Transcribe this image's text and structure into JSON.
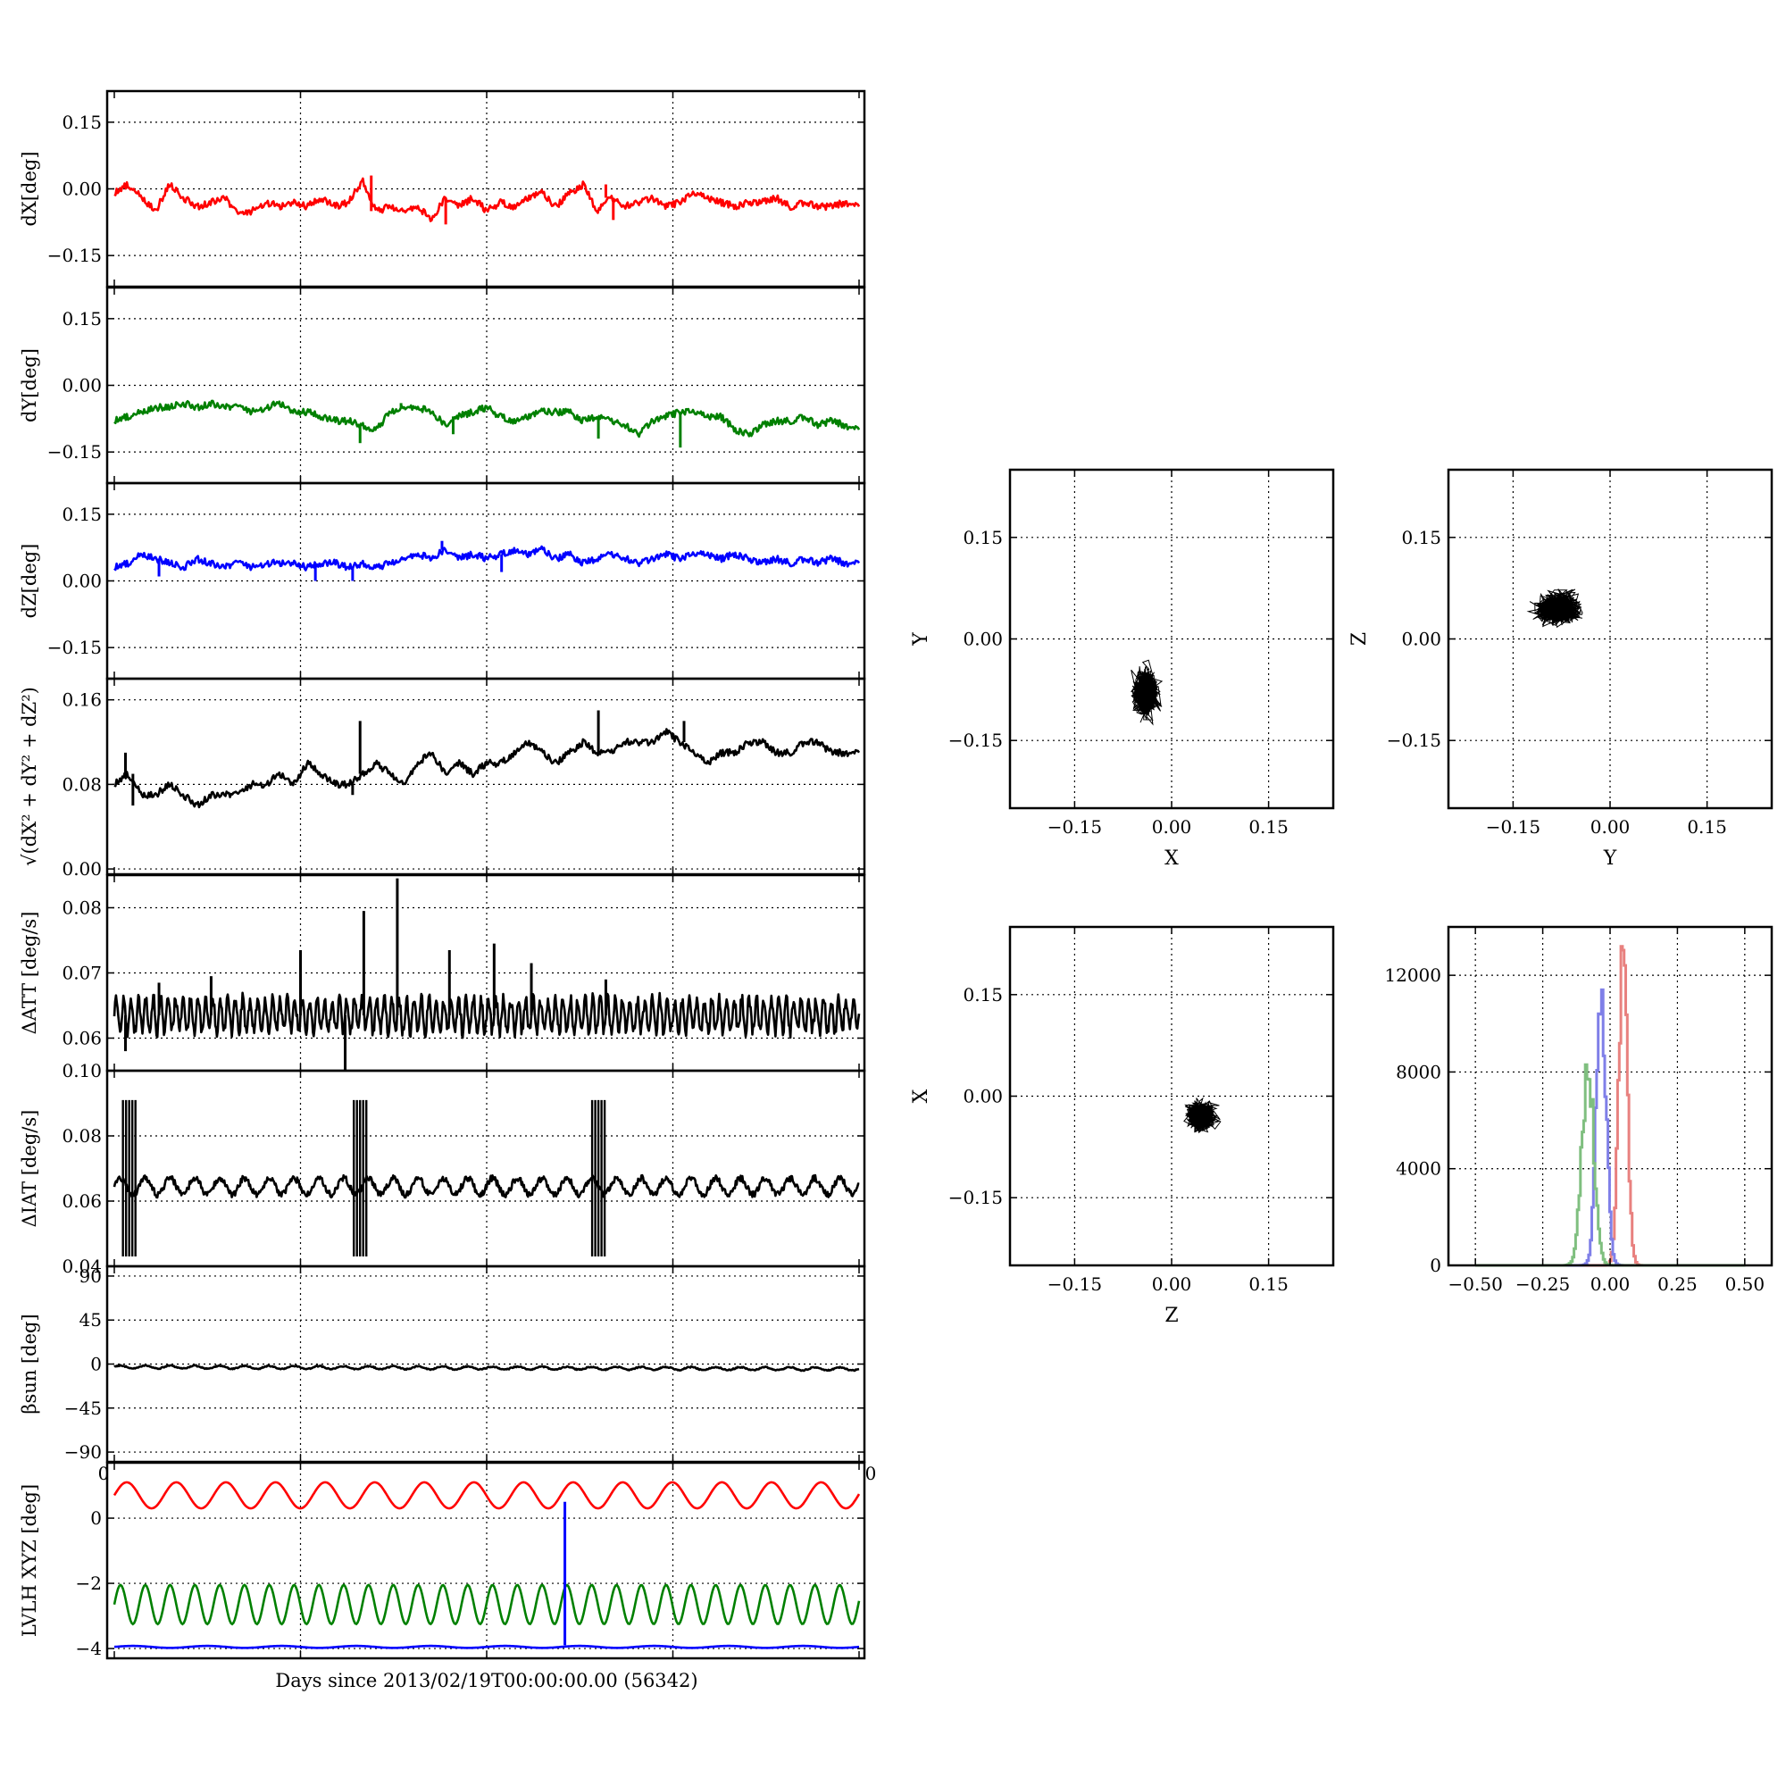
{
  "figure": {
    "xlabel": "Days since 2013/02/19T00:00:00.00 (56342)",
    "stray_tick_left": "0",
    "stray_tick_right": "0"
  },
  "chart_data": [
    {
      "id": "dX",
      "type": "line",
      "ylabel": "dX[deg]",
      "ylim": [
        -0.22,
        0.22
      ],
      "yticks": [
        -0.15,
        0.0,
        0.15
      ],
      "ytick_labels": [
        "−0.15",
        "0.00",
        "0.15"
      ],
      "xlim": [
        0,
        1
      ],
      "grid": true,
      "series": [
        {
          "color": "#ff0000",
          "values": [
            -0.01,
            0.01,
            -0.02,
            -0.05,
            0.01,
            -0.02,
            -0.04,
            -0.03,
            -0.02,
            -0.06,
            -0.05,
            -0.03,
            -0.04,
            -0.03,
            -0.04,
            -0.02,
            -0.04,
            -0.03,
            0.02,
            -0.05,
            -0.04,
            -0.05,
            -0.04,
            -0.07,
            -0.02,
            -0.04,
            -0.02,
            -0.05,
            -0.03,
            -0.04,
            -0.02,
            -0.01,
            -0.04,
            -0.01,
            0.01,
            -0.05,
            -0.02,
            -0.04,
            -0.03,
            -0.02,
            -0.04,
            -0.03,
            -0.01,
            -0.02,
            -0.03,
            -0.04,
            -0.03,
            -0.03,
            -0.02,
            -0.04,
            -0.03,
            -0.04,
            -0.04,
            -0.03,
            -0.04
          ]
        }
      ],
      "spikes": [
        {
          "x": 0.345,
          "y": 0.03
        },
        {
          "x": 0.445,
          "y": -0.08
        },
        {
          "x": 0.66,
          "y": 0.01
        },
        {
          "x": 0.67,
          "y": -0.07
        }
      ]
    },
    {
      "id": "dY",
      "type": "line",
      "ylabel": "dY[deg]",
      "ylim": [
        -0.22,
        0.22
      ],
      "yticks": [
        -0.15,
        0.0,
        0.15
      ],
      "ytick_labels": [
        "−0.15",
        "0.00",
        "0.15"
      ],
      "xlim": [
        0,
        1
      ],
      "grid": true,
      "series": [
        {
          "color": "#008000",
          "values": [
            -0.08,
            -0.07,
            -0.06,
            -0.05,
            -0.05,
            -0.04,
            -0.05,
            -0.04,
            -0.05,
            -0.05,
            -0.06,
            -0.05,
            -0.04,
            -0.06,
            -0.06,
            -0.07,
            -0.08,
            -0.08,
            -0.09,
            -0.1,
            -0.06,
            -0.05,
            -0.05,
            -0.06,
            -0.09,
            -0.07,
            -0.06,
            -0.05,
            -0.07,
            -0.08,
            -0.07,
            -0.06,
            -0.06,
            -0.06,
            -0.08,
            -0.07,
            -0.08,
            -0.09,
            -0.11,
            -0.08,
            -0.07,
            -0.06,
            -0.06,
            -0.07,
            -0.07,
            -0.1,
            -0.11,
            -0.09,
            -0.08,
            -0.08,
            -0.07,
            -0.09,
            -0.08,
            -0.09,
            -0.1
          ]
        }
      ],
      "spikes": [
        {
          "x": 0.33,
          "y": -0.13
        },
        {
          "x": 0.385,
          "y": -0.04
        },
        {
          "x": 0.455,
          "y": -0.11
        },
        {
          "x": 0.65,
          "y": -0.12
        },
        {
          "x": 0.76,
          "y": -0.14
        }
      ]
    },
    {
      "id": "dZ",
      "type": "line",
      "ylabel": "dZ[deg]",
      "ylim": [
        -0.22,
        0.22
      ],
      "yticks": [
        -0.15,
        0.0,
        0.15
      ],
      "ytick_labels": [
        "−0.15",
        "0.00",
        "0.15"
      ],
      "xlim": [
        0,
        1
      ],
      "grid": true,
      "series": [
        {
          "color": "#0000ff",
          "values": [
            0.03,
            0.04,
            0.06,
            0.05,
            0.04,
            0.03,
            0.05,
            0.04,
            0.03,
            0.04,
            0.03,
            0.04,
            0.04,
            0.04,
            0.03,
            0.04,
            0.04,
            0.03,
            0.04,
            0.03,
            0.04,
            0.05,
            0.06,
            0.05,
            0.07,
            0.05,
            0.06,
            0.05,
            0.06,
            0.07,
            0.06,
            0.07,
            0.05,
            0.06,
            0.04,
            0.05,
            0.06,
            0.05,
            0.04,
            0.05,
            0.06,
            0.05,
            0.06,
            0.06,
            0.05,
            0.06,
            0.05,
            0.04,
            0.05,
            0.04,
            0.05,
            0.04,
            0.05,
            0.04,
            0.04
          ]
        }
      ],
      "spikes": [
        {
          "x": 0.06,
          "y": 0.01
        },
        {
          "x": 0.27,
          "y": 0.0
        },
        {
          "x": 0.32,
          "y": 0.0
        },
        {
          "x": 0.44,
          "y": 0.09
        },
        {
          "x": 0.52,
          "y": 0.02
        }
      ]
    },
    {
      "id": "dR",
      "type": "line",
      "ylabel": "√(dX² + dY² + dZ²)",
      "ylim": [
        -0.005,
        0.18
      ],
      "yticks": [
        0.0,
        0.08,
        0.16
      ],
      "ytick_labels": [
        "0.00",
        "0.08",
        "0.16"
      ],
      "xlim": [
        0,
        1
      ],
      "grid": true,
      "series": [
        {
          "color": "#000000",
          "values": [
            0.08,
            0.09,
            0.07,
            0.07,
            0.08,
            0.07,
            0.06,
            0.07,
            0.07,
            0.07,
            0.08,
            0.08,
            0.09,
            0.08,
            0.1,
            0.09,
            0.08,
            0.08,
            0.09,
            0.1,
            0.09,
            0.08,
            0.1,
            0.11,
            0.09,
            0.1,
            0.09,
            0.1,
            0.1,
            0.11,
            0.12,
            0.11,
            0.1,
            0.11,
            0.12,
            0.11,
            0.11,
            0.12,
            0.12,
            0.12,
            0.13,
            0.12,
            0.11,
            0.1,
            0.11,
            0.11,
            0.12,
            0.12,
            0.11,
            0.11,
            0.12,
            0.12,
            0.11,
            0.11,
            0.11
          ]
        }
      ],
      "spikes": [
        {
          "x": 0.015,
          "y": 0.11
        },
        {
          "x": 0.025,
          "y": 0.06
        },
        {
          "x": 0.33,
          "y": 0.14
        },
        {
          "x": 0.32,
          "y": 0.07
        },
        {
          "x": 0.65,
          "y": 0.15
        },
        {
          "x": 0.765,
          "y": 0.14
        }
      ]
    },
    {
      "id": "dATT",
      "type": "line",
      "ylabel": "ΔATT [deg/s]",
      "ylim": [
        0.055,
        0.085
      ],
      "yticks": [
        0.06,
        0.07,
        0.08
      ],
      "ytick_labels": [
        "0.06",
        "0.07",
        "0.08"
      ],
      "xlim": [
        0,
        1
      ],
      "grid": true,
      "oscillation": {
        "period": 0.01,
        "amplitude": 0.0025,
        "base": 0.0635
      },
      "series": [
        {
          "color": "#000000",
          "values": [
            0.0635,
            0.0635
          ]
        }
      ],
      "spikes": [
        {
          "x": 0.015,
          "y": 0.058
        },
        {
          "x": 0.06,
          "y": 0.0685
        },
        {
          "x": 0.13,
          "y": 0.0695
        },
        {
          "x": 0.25,
          "y": 0.0735
        },
        {
          "x": 0.31,
          "y": 0.055
        },
        {
          "x": 0.335,
          "y": 0.0795
        },
        {
          "x": 0.38,
          "y": 0.0845
        },
        {
          "x": 0.45,
          "y": 0.0735
        },
        {
          "x": 0.51,
          "y": 0.0745
        },
        {
          "x": 0.56,
          "y": 0.0715
        },
        {
          "x": 0.66,
          "y": 0.069
        }
      ]
    },
    {
      "id": "dIAT",
      "type": "line",
      "ylabel": "ΔIAT [deg/s]",
      "ylim": [
        0.04,
        0.1
      ],
      "yticks": [
        0.04,
        0.06,
        0.08,
        0.1
      ],
      "ytick_labels": [
        "0.04",
        "0.06",
        "0.08",
        "0.10"
      ],
      "xlim": [
        0,
        1
      ],
      "grid": true,
      "oscillation": {
        "period": 0.0333,
        "amplitude": 0.0025,
        "base": 0.0645
      },
      "series": [
        {
          "color": "#000000",
          "values": [
            0.0645,
            0.0645
          ]
        }
      ],
      "bursts": [
        0.02,
        0.33,
        0.65
      ],
      "burst_range": [
        0.043,
        0.091
      ]
    },
    {
      "id": "beta_sun",
      "type": "line",
      "ylabel": "βsun [deg]",
      "ylim": [
        -100,
        100
      ],
      "yticks": [
        -90,
        -45,
        0,
        45,
        90
      ],
      "ytick_labels": [
        "−90",
        "−45",
        "0",
        "45",
        "90"
      ],
      "xlim": [
        0,
        1
      ],
      "grid": true,
      "oscillation": {
        "period": 0.0333,
        "amplitude": 1.5,
        "base": -3.5
      },
      "series": [
        {
          "color": "#000000",
          "values": [
            -3,
            -5
          ]
        }
      ]
    },
    {
      "id": "lvlh",
      "type": "line",
      "ylabel": "LVLH XYZ [deg]",
      "ylim": [
        -4.3,
        1.7
      ],
      "yticks": [
        -4,
        -2,
        0
      ],
      "ytick_labels": [
        "−4",
        "−2",
        "0"
      ],
      "xlim": [
        0,
        1
      ],
      "grid": true,
      "series": [
        {
          "color": "#ff0000",
          "oscillation": {
            "period": 0.0666,
            "amplitude": 0.4,
            "base": 0.7
          }
        },
        {
          "color": "#008000",
          "oscillation": {
            "period": 0.0333,
            "amplitude": 0.6,
            "base": -2.65
          }
        },
        {
          "color": "#0000ff",
          "oscillation": {
            "period": 0.1,
            "amplitude": 0.03,
            "base": -3.95
          }
        }
      ],
      "spike": {
        "x": 0.605,
        "y_low": -3.9,
        "y_high": 0.5,
        "color": "#0000ff"
      }
    },
    {
      "id": "scatter_xy",
      "type": "scatter",
      "xlabel": "X",
      "ylabel": "Y",
      "xlim": [
        -0.25,
        0.25
      ],
      "ylim": [
        -0.25,
        0.25
      ],
      "ticks": [
        -0.15,
        0.0,
        0.15
      ],
      "tick_labels": [
        "−0.15",
        "0.00",
        "0.15"
      ],
      "grid": true,
      "cluster": {
        "cx": -0.04,
        "cy": -0.08,
        "sx": 0.012,
        "sy": 0.02
      }
    },
    {
      "id": "scatter_yz",
      "type": "scatter",
      "xlabel": "Y",
      "ylabel": "Z",
      "xlim": [
        -0.25,
        0.25
      ],
      "ylim": [
        -0.25,
        0.25
      ],
      "ticks": [
        -0.15,
        0.0,
        0.15
      ],
      "tick_labels": [
        "−0.15",
        "0.00",
        "0.15"
      ],
      "grid": true,
      "cluster": {
        "cx": -0.08,
        "cy": 0.045,
        "sx": 0.02,
        "sy": 0.014
      }
    },
    {
      "id": "scatter_zx",
      "type": "scatter",
      "xlabel": "Z",
      "ylabel": "X",
      "xlim": [
        -0.25,
        0.25
      ],
      "ylim": [
        -0.25,
        0.25
      ],
      "ticks": [
        -0.15,
        0.0,
        0.15
      ],
      "tick_labels": [
        "−0.15",
        "0.00",
        "0.15"
      ],
      "grid": true,
      "cluster": {
        "cx": 0.045,
        "cy": -0.03,
        "sx": 0.013,
        "sy": 0.013
      }
    },
    {
      "id": "histogram",
      "type": "line",
      "xlim": [
        -0.6,
        0.6
      ],
      "ylim": [
        0,
        14000
      ],
      "xticks": [
        -0.5,
        -0.25,
        0.0,
        0.25,
        0.5
      ],
      "xtick_labels": [
        "−0.50",
        "−0.25",
        "0.00",
        "0.25",
        "0.50"
      ],
      "yticks": [
        0,
        4000,
        8000,
        12000
      ],
      "ytick_labels": [
        "0",
        "4000",
        "8000",
        "12000"
      ],
      "grid": true,
      "series": [
        {
          "color": "#e8817f",
          "center": 0.045,
          "width": 0.016,
          "peak": 13200
        },
        {
          "color": "#7f7fe8",
          "center": -0.035,
          "width": 0.018,
          "peak": 11400
        },
        {
          "color": "#7fbf7f",
          "center": -0.085,
          "width": 0.022,
          "peak": 8300
        }
      ]
    }
  ]
}
